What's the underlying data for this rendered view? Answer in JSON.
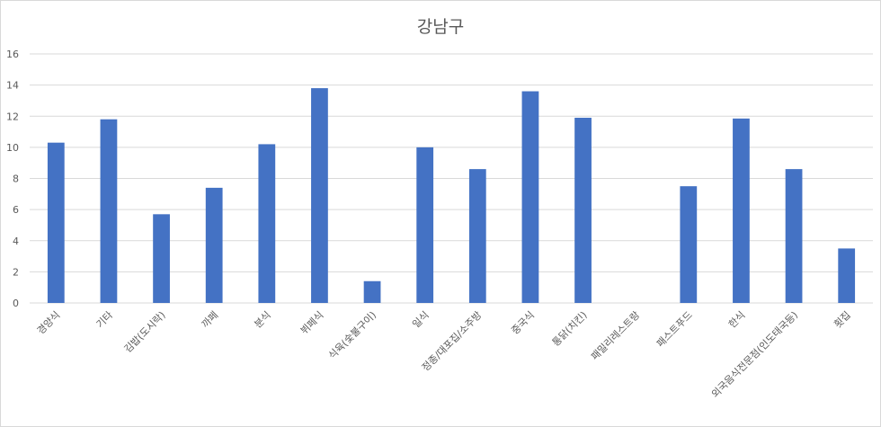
{
  "chart_data": {
    "type": "bar",
    "title": "강남구",
    "xlabel": "",
    "ylabel": "",
    "ylim": [
      0,
      16
    ],
    "yticks": [
      0,
      2,
      4,
      6,
      8,
      10,
      12,
      14,
      16
    ],
    "grid": true,
    "legend": "none",
    "bar_color": "#4472c4",
    "categories": [
      "경양식",
      "기타",
      "김밥(도시락)",
      "까페",
      "분식",
      "뷔페식",
      "식육(숯불구이)",
      "일식",
      "정종/대포집/소주방",
      "중국식",
      "통닭(치킨)",
      "패밀리레스트랑",
      "패스트푸드",
      "한식",
      "외국음식전문점(인도태국등)",
      "횟집"
    ],
    "values": [
      10.3,
      11.8,
      5.7,
      7.4,
      10.2,
      13.8,
      1.4,
      10.0,
      8.6,
      13.6,
      11.9,
      0,
      7.5,
      11.85,
      8.6,
      3.5
    ]
  }
}
